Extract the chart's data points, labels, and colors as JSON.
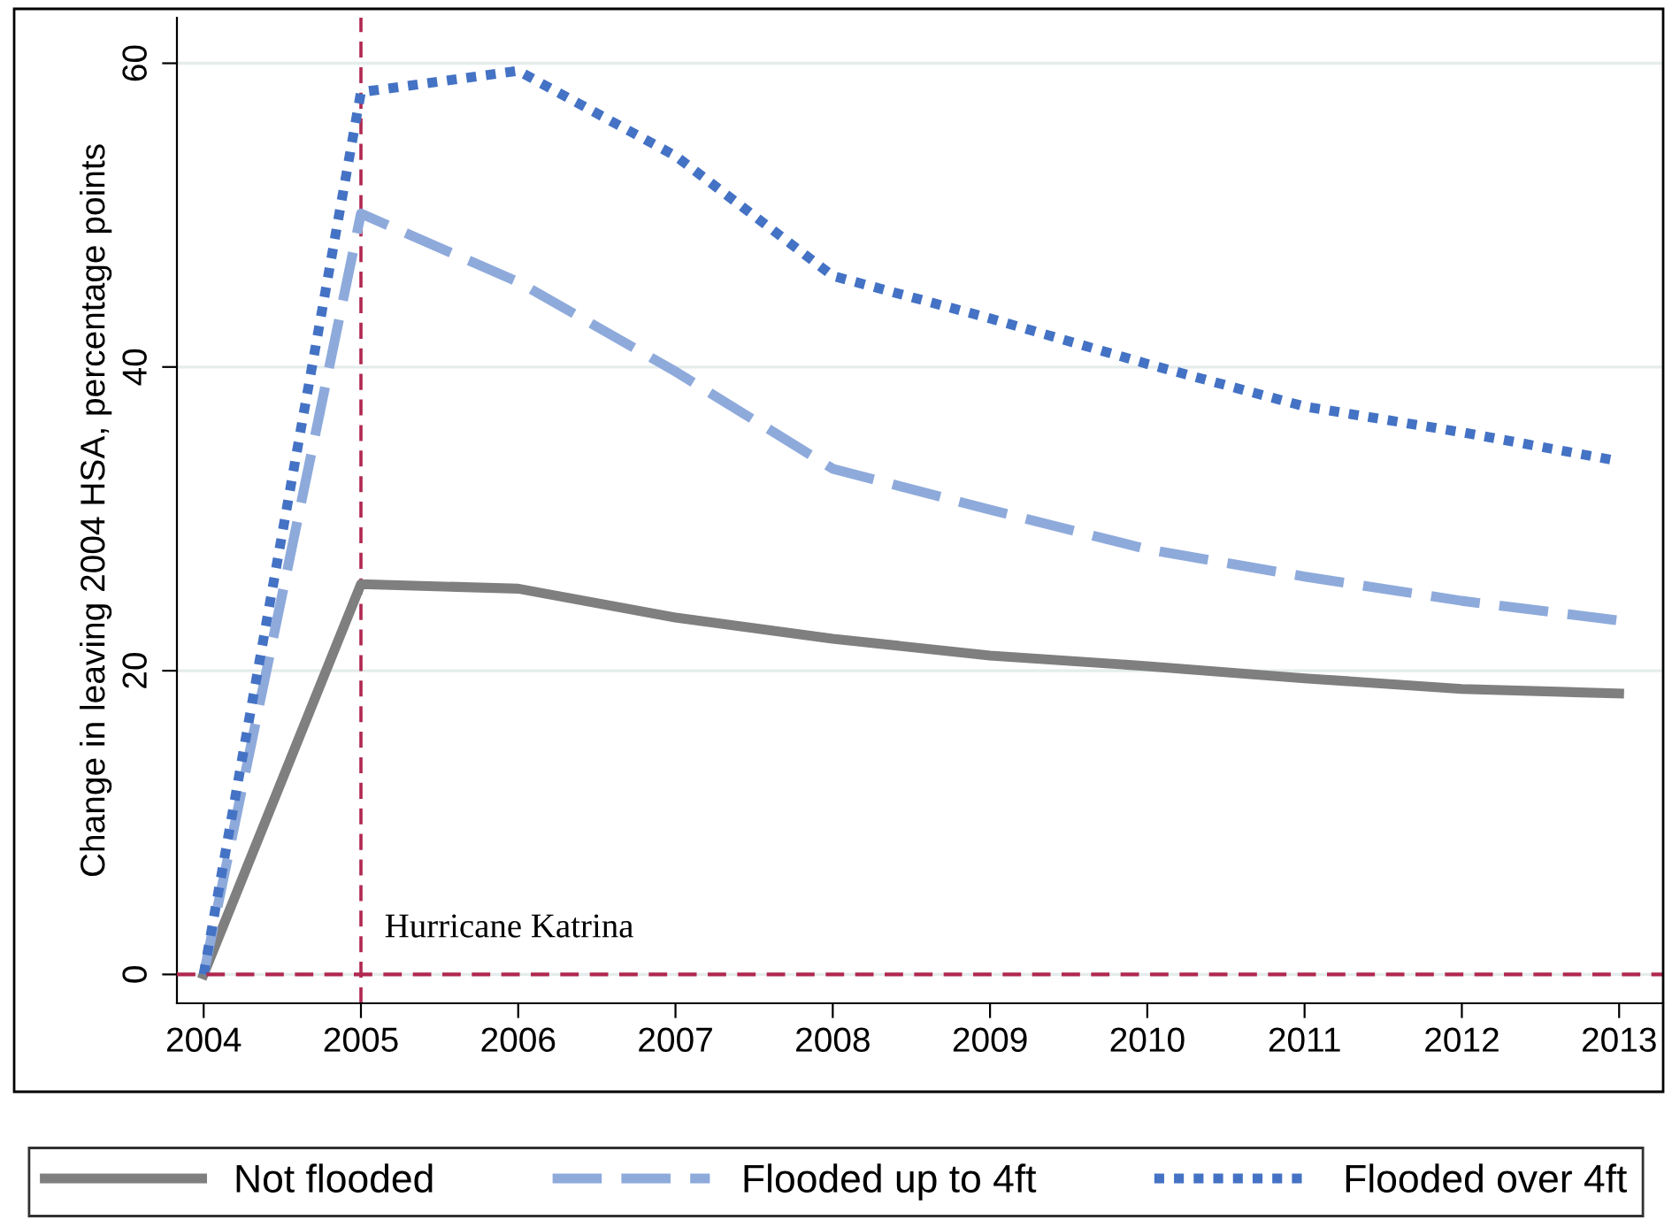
{
  "chart_data": {
    "type": "line",
    "ylabel": "Change in leaving 2004 HSA, percentage points",
    "x": [
      2004,
      2005,
      2006,
      2007,
      2008,
      2009,
      2010,
      2011,
      2012,
      2013
    ],
    "series": [
      {
        "name": "Not flooded",
        "color": "#7f7f7f",
        "line_style": "solid",
        "values": [
          0,
          25.7,
          25.4,
          23.5,
          22.1,
          21.0,
          20.3,
          19.5,
          18.8,
          18.5
        ]
      },
      {
        "name": "Flooded up to 4ft",
        "color": "#8eaadb",
        "line_style": "dashed",
        "values": [
          0,
          50.1,
          45.6,
          39.7,
          33.3,
          30.6,
          28.0,
          26.2,
          24.6,
          23.3
        ]
      },
      {
        "name": "Flooded over 4ft",
        "color": "#4472c4",
        "line_style": "dotted",
        "values": [
          0,
          58.1,
          59.5,
          53.9,
          46.0,
          43.2,
          40.2,
          37.4,
          35.7,
          33.8
        ]
      }
    ],
    "xlim": [
      2003.83,
      2013.28
    ],
    "xticks": [
      2004,
      2005,
      2006,
      2007,
      2008,
      2009,
      2010,
      2011,
      2012,
      2013
    ],
    "ylim": [
      -1.9,
      63
    ],
    "yticks": [
      0,
      20,
      40,
      60
    ],
    "ref_lines": [
      {
        "axis": "x",
        "value": 2005,
        "label": "Hurricane Katrina",
        "color": "#b0284f",
        "line_style": "dashed"
      },
      {
        "axis": "y",
        "value": 0,
        "label": null,
        "color": "#b0284f",
        "line_style": "dashed"
      }
    ],
    "grid": "y",
    "legend": "bottom",
    "marker": "none"
  }
}
